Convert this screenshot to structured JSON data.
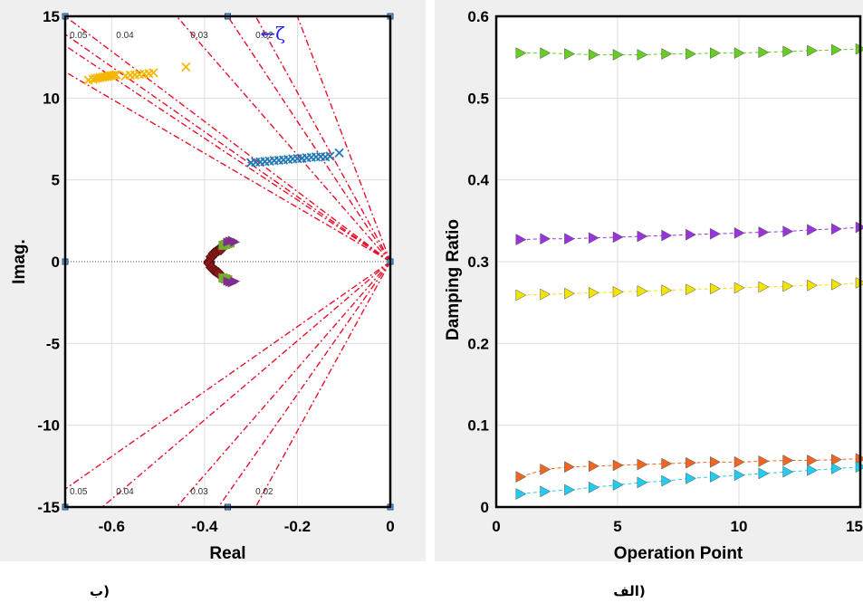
{
  "chart_data": [
    {
      "type": "scatter",
      "xlabel": "Real",
      "ylabel": "Imag.",
      "caption": "ب)",
      "xlim": [
        -0.7,
        0
      ],
      "ylim": [
        -15,
        15
      ],
      "xticks": [
        "-0.6",
        "-0.4",
        "-0.2",
        "0"
      ],
      "yticks": [
        "15",
        "10",
        "5",
        "0",
        "-5",
        "-10",
        "-15"
      ],
      "grid": true,
      "damping_lines": [
        "0.05",
        "0.04",
        "0.03",
        "0.02"
      ],
      "zeta_annotation": "←ζ",
      "series": [
        {
          "color": "#f5b700",
          "marker": "x",
          "mode": "orange",
          "x": [
            -0.65,
            -0.64,
            -0.635,
            -0.63,
            -0.625,
            -0.62,
            -0.615,
            -0.61,
            -0.605,
            -0.6,
            -0.595,
            -0.59,
            -0.57,
            -0.56,
            -0.55,
            -0.54,
            -0.53,
            -0.52,
            -0.51,
            -0.44
          ],
          "y": [
            11.1,
            11.15,
            11.2,
            11.22,
            11.25,
            11.28,
            11.3,
            11.32,
            11.35,
            11.38,
            11.4,
            11.42,
            11.36,
            11.4,
            11.42,
            11.45,
            11.48,
            11.5,
            11.55,
            11.9
          ]
        },
        {
          "color": "#1f77b4",
          "marker": "x",
          "mode": "blue",
          "x": [
            -0.3,
            -0.29,
            -0.28,
            -0.27,
            -0.26,
            -0.25,
            -0.24,
            -0.23,
            -0.22,
            -0.21,
            -0.2,
            -0.19,
            -0.18,
            -0.17,
            -0.16,
            -0.15,
            -0.14,
            -0.13,
            -0.11
          ],
          "y": [
            6.05,
            6.08,
            6.1,
            6.12,
            6.15,
            6.18,
            6.2,
            6.22,
            6.25,
            6.28,
            6.3,
            6.32,
            6.35,
            6.38,
            6.4,
            6.42,
            6.4,
            6.45,
            6.65
          ]
        },
        {
          "color": "#8b1a1a",
          "marker": "diamond",
          "mode": "dark red",
          "x": [
            -0.39,
            -0.385,
            -0.38,
            -0.375,
            -0.37,
            -0.365,
            -0.39,
            -0.385,
            -0.38,
            -0.375,
            -0.37
          ],
          "y": [
            0.0,
            0.3,
            0.5,
            0.6,
            0.7,
            0.75,
            -0.1,
            -0.35,
            -0.5,
            -0.6,
            -0.7
          ]
        },
        {
          "color": "#77ac30",
          "marker": "square",
          "mode": "green",
          "x": [
            -0.36,
            -0.355,
            -0.35,
            -0.345,
            -0.36,
            -0.355,
            -0.35
          ],
          "y": [
            1.0,
            1.05,
            1.1,
            1.15,
            -1.0,
            -1.05,
            -1.1
          ]
        },
        {
          "color": "#7e2f8e",
          "marker": "triangle",
          "mode": "purple",
          "x": [
            -0.35,
            -0.345,
            -0.34,
            -0.335,
            -0.35,
            -0.345,
            -0.34,
            -0.335
          ],
          "y": [
            1.2,
            1.25,
            1.3,
            1.2,
            -1.2,
            -1.25,
            -1.3,
            -1.2
          ]
        }
      ]
    },
    {
      "type": "line",
      "xlabel": "Operation Point",
      "ylabel": "Damping Ratio",
      "caption": "الف)",
      "xlim": [
        0,
        15
      ],
      "ylim": [
        0,
        0.6
      ],
      "xticks": [
        "0",
        "5",
        "10",
        "15"
      ],
      "yticks": [
        "0.6",
        "0.5",
        "0.4",
        "0.3",
        "0.2",
        "0.1",
        "0"
      ],
      "grid": true,
      "x": [
        1,
        2,
        3,
        4,
        5,
        6,
        7,
        8,
        9,
        10,
        11,
        12,
        13,
        14,
        15
      ],
      "series": [
        {
          "color": "#66cc22",
          "values": [
            0.555,
            0.555,
            0.554,
            0.553,
            0.553,
            0.553,
            0.554,
            0.554,
            0.555,
            0.555,
            0.556,
            0.557,
            0.558,
            0.559,
            0.56
          ]
        },
        {
          "color": "#9933dd",
          "values": [
            0.327,
            0.328,
            0.328,
            0.329,
            0.33,
            0.331,
            0.332,
            0.333,
            0.334,
            0.335,
            0.336,
            0.337,
            0.339,
            0.34,
            0.342
          ]
        },
        {
          "color": "#f2e400",
          "values": [
            0.259,
            0.26,
            0.261,
            0.262,
            0.263,
            0.264,
            0.265,
            0.266,
            0.267,
            0.268,
            0.269,
            0.27,
            0.271,
            0.272,
            0.274
          ]
        },
        {
          "color": "#ee6622",
          "values": [
            0.037,
            0.046,
            0.049,
            0.05,
            0.051,
            0.052,
            0.053,
            0.054,
            0.055,
            0.055,
            0.056,
            0.057,
            0.057,
            0.058,
            0.059
          ]
        },
        {
          "color": "#22ccee",
          "values": [
            0.016,
            0.019,
            0.021,
            0.024,
            0.027,
            0.03,
            0.032,
            0.035,
            0.037,
            0.039,
            0.041,
            0.043,
            0.045,
            0.047,
            0.049
          ]
        }
      ]
    }
  ]
}
